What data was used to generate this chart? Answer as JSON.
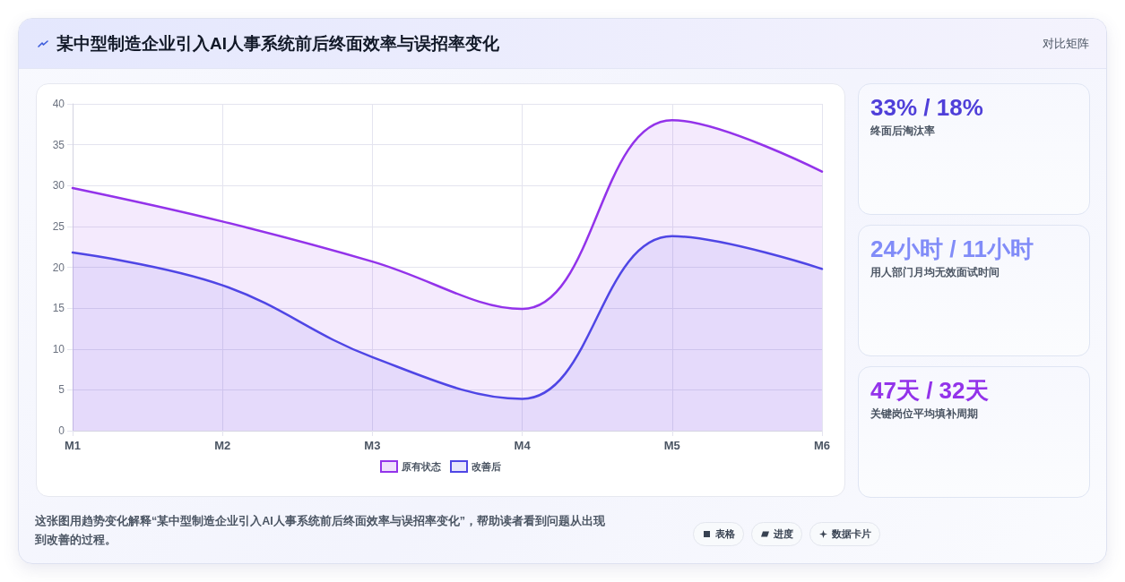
{
  "chart_data": [
    {
      "type": "area",
      "title": "某中型制造企业引入AI人事系统前后终面效率与误招率变化",
      "categories": [
        "M1",
        "M2",
        "M3",
        "M4",
        "M5",
        "M6"
      ],
      "series": [
        {
          "name": "原有状态",
          "color": "#9333ea",
          "values": [
            29.7,
            25.6,
            20.7,
            14.9,
            38,
            31.7
          ]
        },
        {
          "name": "改善后",
          "color": "#4f46e5",
          "values": [
            21.8,
            17.8,
            9,
            3.9,
            23.8,
            19.8
          ]
        }
      ],
      "ylim": [
        0,
        40
      ],
      "yticks": [
        0,
        5,
        10,
        15,
        20,
        25,
        30,
        35,
        40
      ],
      "grid": true,
      "legend": "bottom",
      "marker": "none",
      "annotations": [
        "这张图用趋势变化解释“某中型制造企业引入AI人事系统前后终面效率与误招率变化”，帮助读者看到问题从出现到改善的过程。",
        "表格",
        "进度",
        "数据卡片"
      ]
    },
    {
      "type": "other",
      "title": "33% / 18%",
      "subtitle": "终面后淘汰率",
      "annotations": [
        "对比矩阵"
      ]
    },
    {
      "type": "other",
      "title": "24小时 / 11小时",
      "subtitle": "用人部门月均无效面试时间"
    },
    {
      "type": "other",
      "title": "47天 / 32天",
      "subtitle": "关键岗位平均填补周期"
    }
  ]
}
